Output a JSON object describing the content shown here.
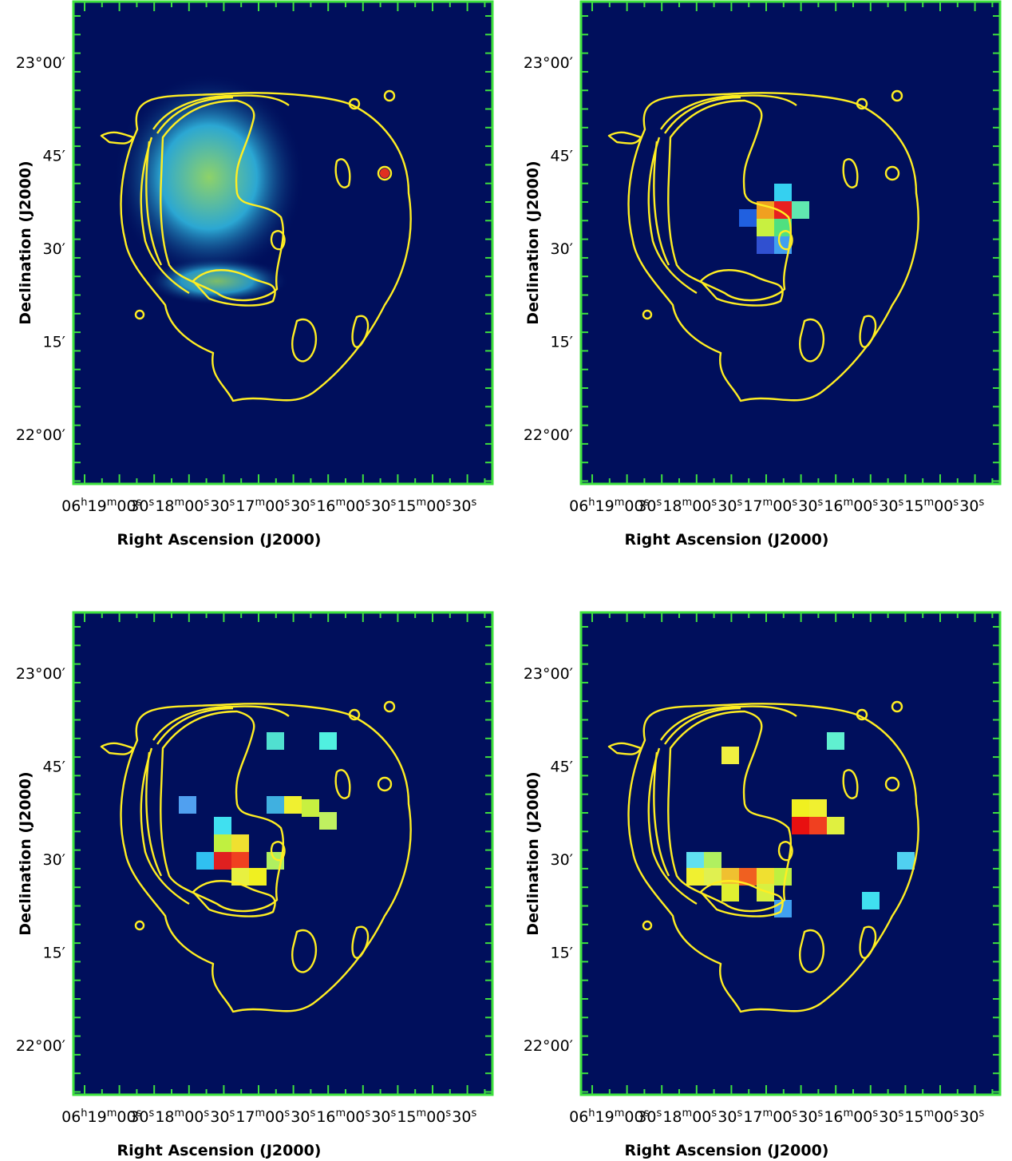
{
  "axes": {
    "xlabel": "Right Ascension (J2000)",
    "ylabel": "Declination (J2000)",
    "xticks": [
      "06h19m00s",
      "30s",
      "18m00s",
      "30s",
      "17m00s",
      "30s",
      "16m00s",
      "30s",
      "15m00s",
      "30s"
    ],
    "yticks": [
      "23°00′",
      "45′",
      "30′",
      "15′",
      "22°00′"
    ]
  }
}
